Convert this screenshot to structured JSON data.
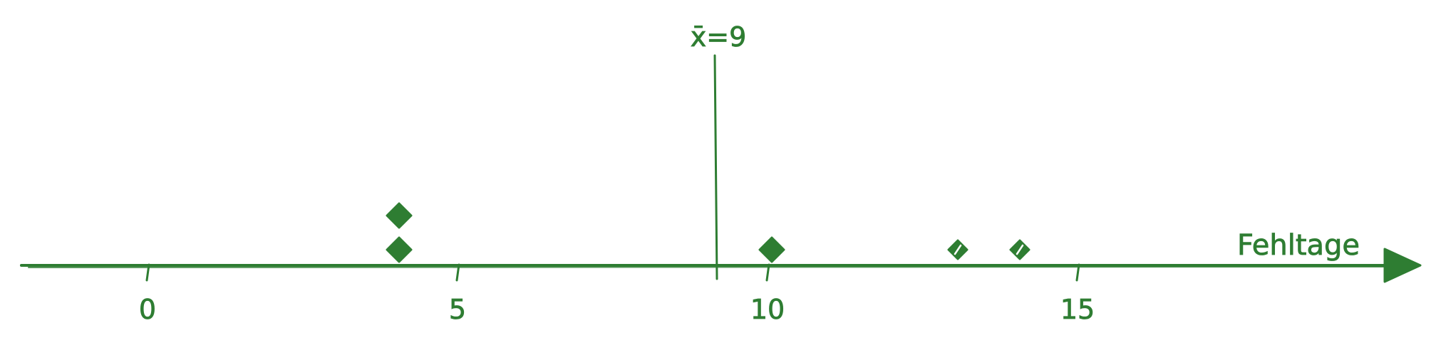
{
  "chart_data": {
    "type": "scatter",
    "title": "",
    "xlabel": "Fehltage",
    "ylabel": "",
    "xlim": [
      -4,
      20.5
    ],
    "x_ticks": [
      0,
      5,
      10,
      15
    ],
    "tick_labels": [
      "0",
      "5",
      "10",
      "15"
    ],
    "points": [
      {
        "x": 4,
        "stack": 1,
        "filled": true
      },
      {
        "x": 4,
        "stack": 2,
        "filled": true
      },
      {
        "x": 10,
        "stack": 1,
        "filled": true
      },
      {
        "x": 13,
        "stack": 1,
        "filled": false
      },
      {
        "x": 14,
        "stack": 1,
        "filled": false
      }
    ],
    "mean": {
      "value": 9,
      "label": "x̄=9"
    },
    "grid": false,
    "color": "#2e7d32"
  }
}
